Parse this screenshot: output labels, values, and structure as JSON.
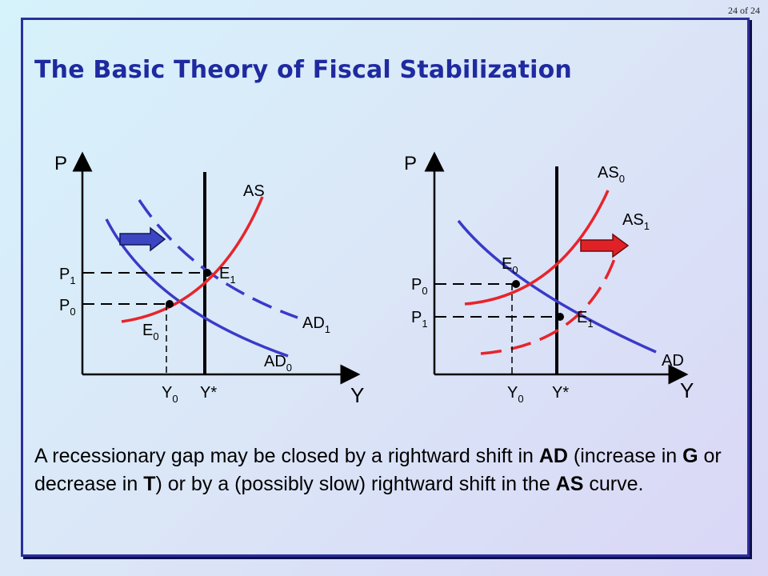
{
  "page_number": "24 of 24",
  "title": "The Basic Theory of Fiscal Stabilization",
  "colors": {
    "title": "#1f2aa0",
    "frame": "#2b2f9b",
    "ad_curve": "#3a3ac8",
    "as_curve": "#e8242b",
    "arrow_blue": "#3c45c2",
    "arrow_red": "#e02226"
  },
  "left_graph": {
    "axis_y": "P",
    "axis_x": "Y",
    "as": "AS",
    "ad0": {
      "base": "AD",
      "sub": "0"
    },
    "ad1": {
      "base": "AD",
      "sub": "1"
    },
    "p1": {
      "base": "P",
      "sub": "1"
    },
    "p0": {
      "base": "P",
      "sub": "0"
    },
    "e1": {
      "base": "E",
      "sub": "1"
    },
    "e0": {
      "base": "E",
      "sub": "0"
    },
    "y0": {
      "base": "Y",
      "sub": "0"
    },
    "ystar": "Y*"
  },
  "right_graph": {
    "axis_y": "P",
    "axis_x": "Y",
    "as0": {
      "base": "AS",
      "sub": "0"
    },
    "as1": {
      "base": "AS",
      "sub": "1"
    },
    "ad": "AD",
    "p0": {
      "base": "P",
      "sub": "0"
    },
    "p1": {
      "base": "P",
      "sub": "1"
    },
    "e0": {
      "base": "E",
      "sub": "0"
    },
    "e1": {
      "base": "E",
      "sub": "1"
    },
    "y0": {
      "base": "Y",
      "sub": "0"
    },
    "ystar": "Y*"
  },
  "caption": {
    "t1": "A recessionary gap may be closed by a rightward shift in ",
    "b1": "AD",
    "t2": " (increase in ",
    "b2": "G",
    "t3": " or decrease in ",
    "b3": "T",
    "t4": ") or by a (possibly slow) rightward shift in the ",
    "b4": "AS",
    "t5": " curve."
  }
}
